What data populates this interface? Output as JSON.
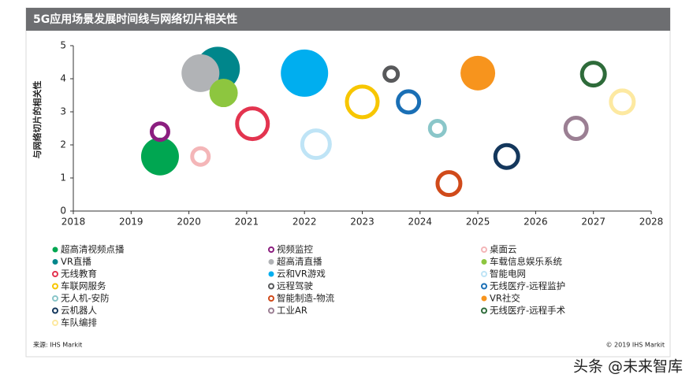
{
  "chart_data": {
    "type": "bubble",
    "title": "5G应用场景发展时间线与网络切片相关性",
    "y_label": "与网络切片的相关性",
    "source": "来源: IHS Markit",
    "copyright": "© 2019 IHS Markit",
    "watermark": "头条 @未来智库",
    "xlim": [
      2018,
      2028
    ],
    "xticks": [
      2018,
      2019,
      2020,
      2021,
      2022,
      2023,
      2024,
      2025,
      2026,
      2027,
      2028
    ],
    "ylim": [
      0,
      5
    ],
    "yticks": [
      0,
      1,
      2,
      3,
      4,
      5
    ],
    "series": [
      {
        "name": "超高清视频点播",
        "color": "#00a651",
        "hollow": false,
        "x": [
          2019.5
        ],
        "values": [
          1.65
        ],
        "sizes": [
          24
        ]
      },
      {
        "name": "视频监控",
        "color": "#8b1e7f",
        "hollow": true,
        "x": [
          2019.5
        ],
        "values": [
          2.4
        ],
        "sizes": [
          13
        ]
      },
      {
        "name": "桌面云",
        "color": "#f4b6b8",
        "hollow": true,
        "x": [
          2020.2
        ],
        "values": [
          1.65
        ],
        "sizes": [
          13
        ]
      },
      {
        "name": "VR直播",
        "color": "#00868b",
        "hollow": false,
        "x": [
          2020.5
        ],
        "values": [
          4.3
        ],
        "sizes": [
          28
        ]
      },
      {
        "name": "超高清直播",
        "color": "#b1b3b6",
        "hollow": false,
        "x": [
          2020.2
        ],
        "values": [
          4.17
        ],
        "sizes": [
          24
        ]
      },
      {
        "name": "车载信息娱乐系统",
        "color": "#8dc63f",
        "hollow": false,
        "x": [
          2020.6
        ],
        "values": [
          3.57
        ],
        "sizes": [
          18
        ]
      },
      {
        "name": "无线教育",
        "color": "#e3344f",
        "hollow": true,
        "x": [
          2021.1
        ],
        "values": [
          2.64
        ],
        "sizes": [
          22
        ]
      },
      {
        "name": "云和VR游戏",
        "color": "#00aeef",
        "hollow": false,
        "x": [
          2022
        ],
        "values": [
          4.17
        ],
        "sizes": [
          30
        ]
      },
      {
        "name": "智能电网",
        "color": "#bfe4f6",
        "hollow": true,
        "x": [
          2022.2
        ],
        "values": [
          2.02
        ],
        "sizes": [
          20
        ]
      },
      {
        "name": "车联网服务",
        "color": "#f7c600",
        "hollow": true,
        "x": [
          2023
        ],
        "values": [
          3.3
        ],
        "sizes": [
          22
        ]
      },
      {
        "name": "远程驾驶",
        "color": "#58595b",
        "hollow": true,
        "x": [
          2023.5
        ],
        "values": [
          4.14
        ],
        "sizes": [
          11
        ]
      },
      {
        "name": "无线医疗-远程监护",
        "color": "#1a6fb5",
        "hollow": true,
        "x": [
          2023.8
        ],
        "values": [
          3.3
        ],
        "sizes": [
          16
        ]
      },
      {
        "name": "无人机-安防",
        "color": "#8ac6c9",
        "hollow": true,
        "x": [
          2024.3
        ],
        "values": [
          2.5
        ],
        "sizes": [
          12
        ]
      },
      {
        "name": "智能制造-物流",
        "color": "#d04a1a",
        "hollow": true,
        "x": [
          2024.5
        ],
        "values": [
          0.83
        ],
        "sizes": [
          17
        ]
      },
      {
        "name": "VR社交",
        "color": "#f7941d",
        "hollow": false,
        "x": [
          2025
        ],
        "values": [
          4.17
        ],
        "sizes": [
          22
        ]
      },
      {
        "name": "云机器人",
        "color": "#14375c",
        "hollow": true,
        "x": [
          2025.5
        ],
        "values": [
          1.65
        ],
        "sizes": [
          17
        ]
      },
      {
        "name": "工业AR",
        "color": "#9b7f93",
        "hollow": true,
        "x": [
          2026.7
        ],
        "values": [
          2.5
        ],
        "sizes": [
          16
        ]
      },
      {
        "name": "无线医疗-远程手术",
        "color": "#2e6b3a",
        "hollow": true,
        "x": [
          2027
        ],
        "values": [
          4.14
        ],
        "sizes": [
          17
        ]
      },
      {
        "name": "车队编排",
        "color": "#fde9a1",
        "hollow": true,
        "x": [
          2027.5
        ],
        "values": [
          3.3
        ],
        "sizes": [
          17
        ]
      }
    ]
  }
}
